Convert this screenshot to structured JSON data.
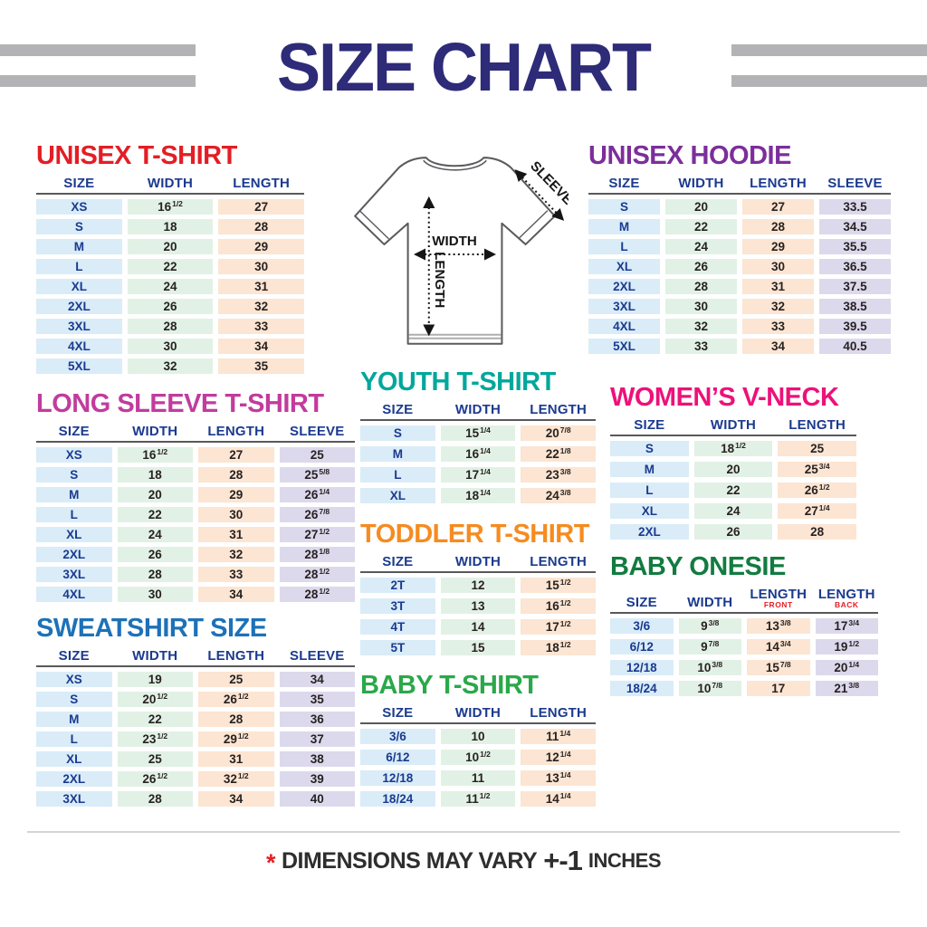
{
  "title": "SIZE CHART",
  "colors": {
    "title": "#2E2B78",
    "bars": "#B3B3B5",
    "header_text": "#1B3A8F",
    "rule": "#59595B",
    "number_text": "#272222",
    "size_fill": "#D9ECF8",
    "width_fill": "#E2F1E5",
    "length_fill": "#FCE5D2",
    "sleeve_fill": "#DDD9EC",
    "divider": "#D4D4D4",
    "footer_text": "#2E2E2E",
    "accent_red": "#E31E25"
  },
  "diagram": {
    "width_label": "WIDTH",
    "length_label": "LENGTH",
    "sleeve_label": "SLEEVE"
  },
  "tables": {
    "unisex_tshirt": {
      "title": "UNISEX T-SHIRT",
      "title_color": "#E31E25",
      "columns": [
        {
          "key": "size",
          "label": "SIZE"
        },
        {
          "key": "width",
          "label": "WIDTH"
        },
        {
          "key": "length",
          "label": "LENGTH"
        }
      ],
      "rows": [
        [
          "XS",
          "16 1/2",
          "27"
        ],
        [
          "S",
          "18",
          "28"
        ],
        [
          "M",
          "20",
          "29"
        ],
        [
          "L",
          "22",
          "30"
        ],
        [
          "XL",
          "24",
          "31"
        ],
        [
          "2XL",
          "26",
          "32"
        ],
        [
          "3XL",
          "28",
          "33"
        ],
        [
          "4XL",
          "30",
          "34"
        ],
        [
          "5XL",
          "32",
          "35"
        ]
      ]
    },
    "hoodie": {
      "title": "UNISEX HOODIE",
      "title_color": "#7C2E9B",
      "columns": [
        {
          "key": "size",
          "label": "SIZE"
        },
        {
          "key": "width",
          "label": "WIDTH"
        },
        {
          "key": "length",
          "label": "LENGTH"
        },
        {
          "key": "sleeve",
          "label": "SLEEVE"
        }
      ],
      "rows": [
        [
          "S",
          "20",
          "27",
          "33.5"
        ],
        [
          "M",
          "22",
          "28",
          "34.5"
        ],
        [
          "L",
          "24",
          "29",
          "35.5"
        ],
        [
          "XL",
          "26",
          "30",
          "36.5"
        ],
        [
          "2XL",
          "28",
          "31",
          "37.5"
        ],
        [
          "3XL",
          "30",
          "32",
          "38.5"
        ],
        [
          "4XL",
          "32",
          "33",
          "39.5"
        ],
        [
          "5XL",
          "33",
          "34",
          "40.5"
        ]
      ]
    },
    "long_sleeve": {
      "title": "LONG SLEEVE T-SHIRT",
      "title_color": "#C13C9D",
      "columns": [
        {
          "key": "size",
          "label": "SIZE"
        },
        {
          "key": "width",
          "label": "WIDTH"
        },
        {
          "key": "length",
          "label": "LENGTH"
        },
        {
          "key": "sleeve",
          "label": "SLEEVE"
        }
      ],
      "rows": [
        [
          "XS",
          "16 1/2",
          "27",
          "25"
        ],
        [
          "S",
          "18",
          "28",
          "25 5/8"
        ],
        [
          "M",
          "20",
          "29",
          "26 1/4"
        ],
        [
          "L",
          "22",
          "30",
          "26 7/8"
        ],
        [
          "XL",
          "24",
          "31",
          "27 1/2"
        ],
        [
          "2XL",
          "26",
          "32",
          "28 1/8"
        ],
        [
          "3XL",
          "28",
          "33",
          "28 1/2"
        ],
        [
          "4XL",
          "30",
          "34",
          "28 1/2"
        ]
      ]
    },
    "sweatshirt": {
      "title": "SWEATSHIRT SIZE",
      "title_color": "#1D71B8",
      "columns": [
        {
          "key": "size",
          "label": "SIZE"
        },
        {
          "key": "width",
          "label": "WIDTH"
        },
        {
          "key": "length",
          "label": "LENGTH"
        },
        {
          "key": "sleeve",
          "label": "SLEEVE"
        }
      ],
      "rows": [
        [
          "XS",
          "19",
          "25",
          "34"
        ],
        [
          "S",
          "20 1/2",
          "26 1/2",
          "35"
        ],
        [
          "M",
          "22",
          "28",
          "36"
        ],
        [
          "L",
          "23 1/2",
          "29 1/2",
          "37"
        ],
        [
          "XL",
          "25",
          "31",
          "38"
        ],
        [
          "2XL",
          "26 1/2",
          "32 1/2",
          "39"
        ],
        [
          "3XL",
          "28",
          "34",
          "40"
        ]
      ]
    },
    "youth": {
      "title": "YOUTH T-SHIRT",
      "title_color": "#00A79B",
      "columns": [
        {
          "key": "size",
          "label": "SIZE"
        },
        {
          "key": "width",
          "label": "WIDTH"
        },
        {
          "key": "length",
          "label": "LENGTH"
        }
      ],
      "rows": [
        [
          "S",
          "15 1/4",
          "20 7/8"
        ],
        [
          "M",
          "16 1/4",
          "22 1/8"
        ],
        [
          "L",
          "17 1/4",
          "23 3/8"
        ],
        [
          "XL",
          "18 1/4",
          "24 3/8"
        ]
      ]
    },
    "toddler": {
      "title": "TODDLER T-SHIRT",
      "title_color": "#F68B1F",
      "columns": [
        {
          "key": "size",
          "label": "SIZE"
        },
        {
          "key": "width",
          "label": "WIDTH"
        },
        {
          "key": "length",
          "label": "LENGTH"
        }
      ],
      "rows": [
        [
          "2T",
          "12",
          "15 1/2"
        ],
        [
          "3T",
          "13",
          "16 1/2"
        ],
        [
          "4T",
          "14",
          "17 1/2"
        ],
        [
          "5T",
          "15",
          "18 1/2"
        ]
      ]
    },
    "baby_tshirt": {
      "title": "BABY T-SHIRT",
      "title_color": "#2BA84A",
      "columns": [
        {
          "key": "size",
          "label": "SIZE"
        },
        {
          "key": "width",
          "label": "WIDTH"
        },
        {
          "key": "length",
          "label": "LENGTH"
        }
      ],
      "rows": [
        [
          "3/6",
          "10",
          "11 1/4"
        ],
        [
          "6/12",
          "10 1/2",
          "12 1/4"
        ],
        [
          "12/18",
          "11",
          "13 1/4"
        ],
        [
          "18/24",
          "11 1/2",
          "14 1/4"
        ]
      ]
    },
    "vneck": {
      "title": "WOMEN’S V-NECK",
      "title_color": "#ED1179",
      "columns": [
        {
          "key": "size",
          "label": "SIZE"
        },
        {
          "key": "width",
          "label": "WIDTH"
        },
        {
          "key": "length",
          "label": "LENGTH"
        }
      ],
      "rows": [
        [
          "S",
          "18 1/2",
          "25"
        ],
        [
          "M",
          "20",
          "25 3/4"
        ],
        [
          "L",
          "22",
          "26 1/2"
        ],
        [
          "XL",
          "24",
          "27 1/4"
        ],
        [
          "2XL",
          "26",
          "28"
        ]
      ]
    },
    "onesie": {
      "title": "BABY ONESIE",
      "title_color": "#127C40",
      "columns": [
        {
          "key": "size",
          "label": "SIZE"
        },
        {
          "key": "width",
          "label": "WIDTH"
        },
        {
          "key": "length_front",
          "label": "LENGTH",
          "sub": "FRONT"
        },
        {
          "key": "length_back",
          "label": "LENGTH",
          "sub": "BACK"
        }
      ],
      "rows": [
        [
          "3/6",
          "9 3/8",
          "13 3/8",
          "17 3/4"
        ],
        [
          "6/12",
          "9 7/8",
          "14 3/4",
          "19 1/2"
        ],
        [
          "12/18",
          "10 3/8",
          "15 7/8",
          "20 1/4"
        ],
        [
          "18/24",
          "10 7/8",
          "17",
          "21 3/8"
        ]
      ]
    }
  },
  "footer": {
    "asterisk": "*",
    "text": "DIMENSIONS MAY VARY",
    "variance": "+-1",
    "unit": "INCHES"
  }
}
